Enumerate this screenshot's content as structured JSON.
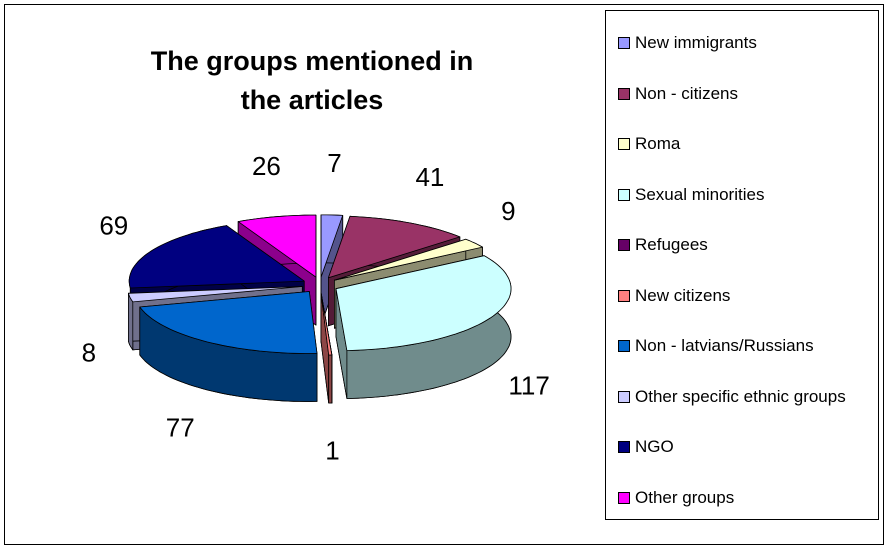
{
  "chart_data": {
    "type": "pie3d",
    "title": "The groups mentioned in the articles",
    "categories": [
      "New immigrants",
      "Non - citizens",
      "Roma",
      "Sexual minorities",
      "Refugees",
      "New citizens",
      "Non - latvians/Russians",
      "Other specific ethnic groups",
      "NGO",
      "Other groups"
    ],
    "values": [
      7,
      41,
      9,
      117,
      0,
      1,
      77,
      8,
      69,
      26
    ],
    "colors": [
      "#9999ff",
      "#993366",
      "#ffffcc",
      "#ccffff",
      "#660066",
      "#ff8080",
      "#0066cc",
      "#ccccff",
      "#000080",
      "#ff00ff"
    ],
    "legend": "right"
  }
}
